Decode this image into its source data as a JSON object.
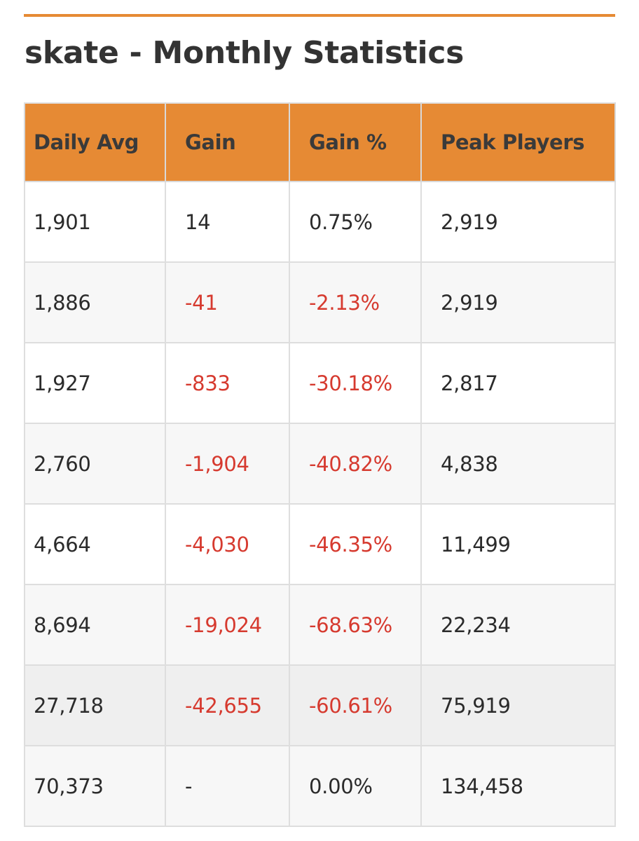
{
  "page": {
    "title": "skate - Monthly Statistics",
    "accent_color": "#e68a34",
    "negative_color": "#d63a2f"
  },
  "table": {
    "columns": [
      "Daily Avg",
      "Gain",
      "Gain %",
      "Peak Players"
    ],
    "rows": [
      {
        "daily_avg": "1,901",
        "gain": "14",
        "gain_pct": "0.75%",
        "peak_players": "2,919",
        "negative": false
      },
      {
        "daily_avg": "1,886",
        "gain": "-41",
        "gain_pct": "-2.13%",
        "peak_players": "2,919",
        "negative": true
      },
      {
        "daily_avg": "1,927",
        "gain": "-833",
        "gain_pct": "-30.18%",
        "peak_players": "2,817",
        "negative": true
      },
      {
        "daily_avg": "2,760",
        "gain": "-1,904",
        "gain_pct": "-40.82%",
        "peak_players": "4,838",
        "negative": true
      },
      {
        "daily_avg": "4,664",
        "gain": "-4,030",
        "gain_pct": "-46.35%",
        "peak_players": "11,499",
        "negative": true
      },
      {
        "daily_avg": "8,694",
        "gain": "-19,024",
        "gain_pct": "-68.63%",
        "peak_players": "22,234",
        "negative": true
      },
      {
        "daily_avg": "27,718",
        "gain": "-42,655",
        "gain_pct": "-60.61%",
        "peak_players": "75,919",
        "negative": true
      },
      {
        "daily_avg": "70,373",
        "gain": "-",
        "gain_pct": "0.00%",
        "peak_players": "134,458",
        "negative": false
      }
    ]
  }
}
